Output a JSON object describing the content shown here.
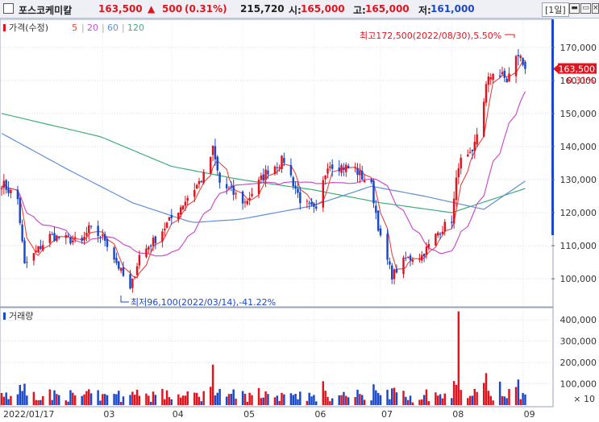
{
  "header": {
    "stock_name": "포스코케미칼",
    "price": "163,500",
    "change_arrow": "▲",
    "change": "500",
    "change_pct": "(0.31%)",
    "volume": "215,720",
    "open_label": "시:",
    "open": "165,000",
    "high_label": "고:",
    "high": "165,000",
    "low_label": "저:",
    "low": "161,000",
    "period": "[1일]"
  },
  "window_icons": [
    "minimize-icon",
    "maximize-icon",
    "close-icon"
  ],
  "colors": {
    "up": "#e0141e",
    "down": "#1b48c8",
    "ma5": "#e8453c",
    "ma20": "#cc4fc9",
    "ma60": "#5f8fd6",
    "ma120": "#3fae7b"
  },
  "chart_data": [
    {
      "type": "candlestick",
      "legend": {
        "price_label": "가격(수정)",
        "ma_labels": [
          "5",
          "20",
          "60",
          "120"
        ]
      },
      "x_tick_labels": [
        "2022/01/17",
        "03",
        "04",
        "05",
        "06",
        "07",
        "08",
        "09"
      ],
      "y_ticks": [
        100000,
        110000,
        120000,
        130000,
        140000,
        150000,
        160000,
        170000
      ],
      "y_tick_labels": [
        "100,000",
        "110,000",
        "120,000",
        "130,000",
        "140,000",
        "150,000",
        "160,000",
        "170,000"
      ],
      "ylim": [
        92000,
        178000
      ],
      "current_price_label": "163,500",
      "current_change_label": "0.31%",
      "annotations": {
        "high": "최고172,500(2022/08/30),5.50%",
        "low": "최저96,100(2022/03/14),-41.22%"
      },
      "anchors": [
        {
          "date": "2022-01-17",
          "close": 129000
        },
        {
          "date": "2022-01-24",
          "close": 124000
        },
        {
          "date": "2022-01-27",
          "close": 104000
        },
        {
          "date": "2022-02-07",
          "close": 113000
        },
        {
          "date": "2022-02-21",
          "close": 111000
        },
        {
          "date": "2022-02-24",
          "close": 115000
        },
        {
          "date": "2022-03-03",
          "close": 112000
        },
        {
          "date": "2022-03-14",
          "close": 96500
        },
        {
          "date": "2022-03-18",
          "close": 107000
        },
        {
          "date": "2022-03-25",
          "close": 112000
        },
        {
          "date": "2022-04-04",
          "close": 121000
        },
        {
          "date": "2022-04-15",
          "close": 131000
        },
        {
          "date": "2022-04-19",
          "close": 139000
        },
        {
          "date": "2022-04-22",
          "close": 129000
        },
        {
          "date": "2022-05-03",
          "close": 123000
        },
        {
          "date": "2022-05-13",
          "close": 133000
        },
        {
          "date": "2022-05-20",
          "close": 136000
        },
        {
          "date": "2022-05-27",
          "close": 124000
        },
        {
          "date": "2022-06-03",
          "close": 120000
        },
        {
          "date": "2022-06-08",
          "close": 135000
        },
        {
          "date": "2022-06-20",
          "close": 133000
        },
        {
          "date": "2022-06-27",
          "close": 128000
        },
        {
          "date": "2022-07-01",
          "close": 112000
        },
        {
          "date": "2022-07-06",
          "close": 101000
        },
        {
          "date": "2022-07-12",
          "close": 106000
        },
        {
          "date": "2022-07-19",
          "close": 107000
        },
        {
          "date": "2022-07-26",
          "close": 114000
        },
        {
          "date": "2022-08-01",
          "close": 118000
        },
        {
          "date": "2022-08-04",
          "close": 135000
        },
        {
          "date": "2022-08-10",
          "close": 137000
        },
        {
          "date": "2022-08-16",
          "close": 158000
        },
        {
          "date": "2022-08-19",
          "close": 163000
        },
        {
          "date": "2022-08-25",
          "close": 160000
        },
        {
          "date": "2022-08-30",
          "close": 168000
        },
        {
          "date": "2022-09-02",
          "close": 163500
        }
      ],
      "moving_average_anchors": {
        "ma120": [
          {
            "date": "2022-01-17",
            "value": 150000
          },
          {
            "date": "2022-03-01",
            "value": 143000
          },
          {
            "date": "2022-04-01",
            "value": 134000
          },
          {
            "date": "2022-05-01",
            "value": 130000
          },
          {
            "date": "2022-06-01",
            "value": 127000
          },
          {
            "date": "2022-07-01",
            "value": 123000
          },
          {
            "date": "2022-08-01",
            "value": 120000
          },
          {
            "date": "2022-09-05",
            "value": 128000
          }
        ],
        "ma60": [
          {
            "date": "2022-01-17",
            "value": 144000
          },
          {
            "date": "2022-02-15",
            "value": 133000
          },
          {
            "date": "2022-03-15",
            "value": 123000
          },
          {
            "date": "2022-04-10",
            "value": 117000
          },
          {
            "date": "2022-05-01",
            "value": 118000
          },
          {
            "date": "2022-06-01",
            "value": 122000
          },
          {
            "date": "2022-06-27",
            "value": 128000
          },
          {
            "date": "2022-07-20",
            "value": 125000
          },
          {
            "date": "2022-08-15",
            "value": 121000
          },
          {
            "date": "2022-09-05",
            "value": 131000
          }
        ]
      }
    },
    {
      "type": "bar",
      "title": "거래량",
      "y_ticks": [
        100000,
        200000,
        300000,
        400000
      ],
      "y_tick_labels": [
        "100,000",
        "200,000",
        "300,000",
        "400,000"
      ],
      "unit_label": "× 10",
      "ylim": [
        0,
        450000
      ],
      "spikes": [
        {
          "date": "2022-04-19",
          "value": 190000
        },
        {
          "date": "2022-08-04",
          "value": 440000
        },
        {
          "date": "2022-08-16",
          "value": 150000
        },
        {
          "date": "2022-08-22",
          "value": 110000
        },
        {
          "date": "2022-08-30",
          "value": 120000
        }
      ]
    }
  ]
}
